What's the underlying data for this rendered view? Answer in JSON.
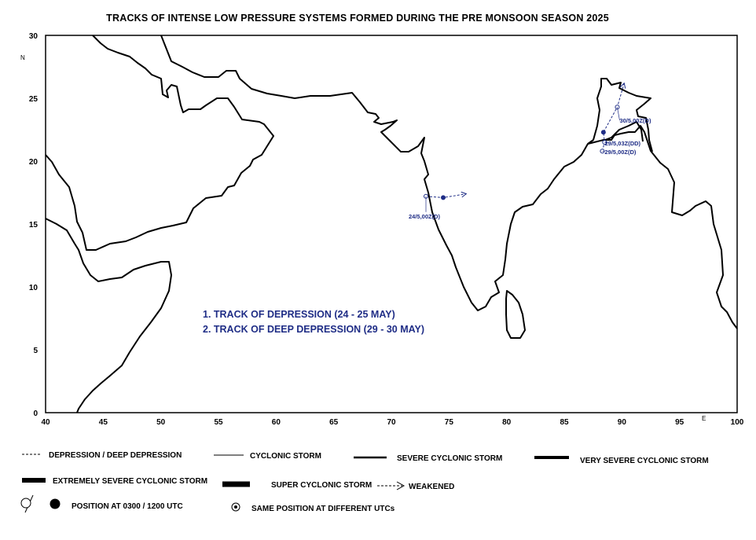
{
  "title": "TRACKS OF INTENSE LOW PRESSURE SYSTEMS FORMED DURING THE PRE MONSOON SEASON 2025",
  "axes": {
    "x_ticks": [
      40,
      45,
      50,
      55,
      60,
      65,
      70,
      75,
      80,
      85,
      90,
      95,
      100
    ],
    "y_ticks": [
      0,
      5,
      10,
      15,
      20,
      25,
      30
    ],
    "x_unit": "E",
    "y_unit": "N",
    "xlim": [
      40,
      100
    ],
    "ylim": [
      0,
      30
    ]
  },
  "tracks_text": [
    "1. TRACK OF DEPRESSION (24 - 25 MAY)",
    "2. TRACK OF DEEP DEPRESSION (29 - 30 MAY)"
  ],
  "track_color": "#1f2d86",
  "tracks": [
    {
      "points": [
        {
          "lon": 73.0,
          "lat": 17.2,
          "label": "24/5,00Z(D)",
          "hollow": true
        },
        {
          "lon": 74.5,
          "lat": 17.1,
          "label": "",
          "hollow": false
        }
      ],
      "weakened_to": {
        "lon": 76.5,
        "lat": 17.4
      }
    },
    {
      "points": [
        {
          "lon": 88.3,
          "lat": 20.8,
          "label": "29/5,00Z(D)",
          "hollow": true
        },
        {
          "lon": 88.5,
          "lat": 21.5,
          "label": "29/5,03Z(DD)",
          "hollow": true
        },
        {
          "lon": 88.4,
          "lat": 22.3,
          "label": "",
          "hollow": false
        },
        {
          "lon": 89.6,
          "lat": 24.3,
          "label": "30/5,00Z(D)",
          "hollow": true
        }
      ],
      "weakened_to": {
        "lon": 90.2,
        "lat": 26.2
      }
    }
  ],
  "legend": {
    "depression": "DEPRESSION / DEEP DEPRESSION",
    "cyclonic": "CYCLONIC STORM",
    "severe": "SEVERE CYCLONIC STORM",
    "very_severe": "VERY SEVERE CYCLONIC STORM",
    "extremely_severe": "EXTREMELY SEVERE CYCLONIC STORM",
    "super": "SUPER CYCLONIC STORM",
    "weakened": "WEAKENED",
    "position": "POSITION AT 0300 / 1200 UTC",
    "same_position": "SAME POSITION AT DIFFERENT UTCs"
  }
}
